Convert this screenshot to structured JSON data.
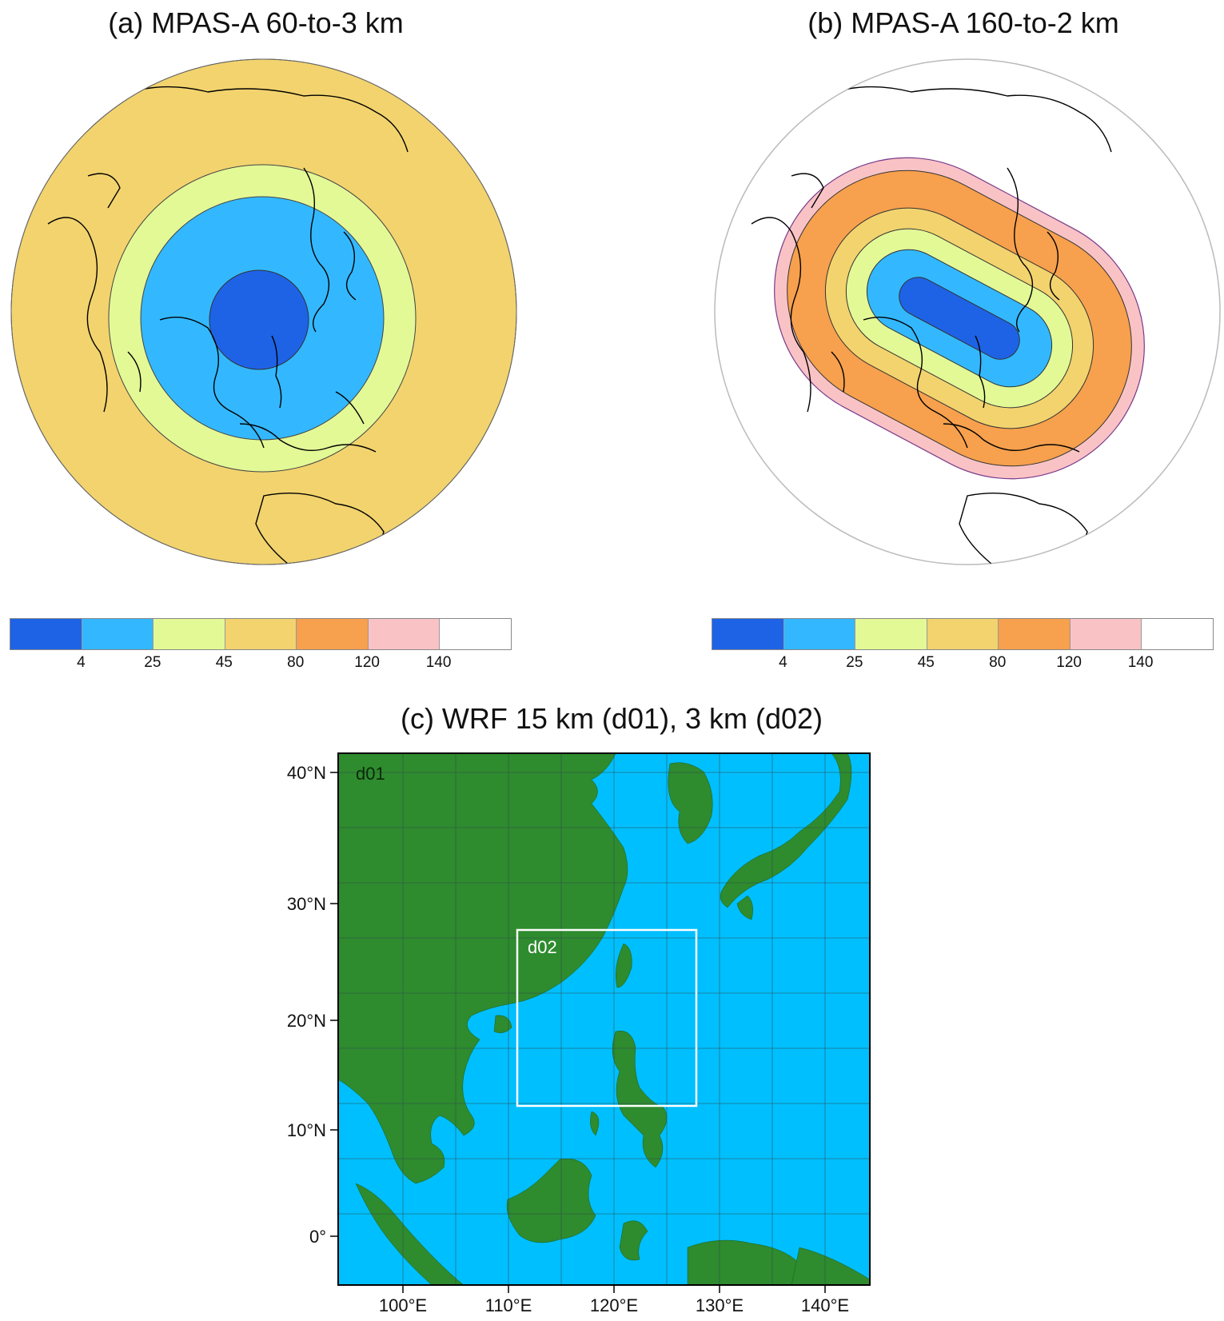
{
  "panels": {
    "a": {
      "title": "(a) MPAS-A 60-to-3 km"
    },
    "b": {
      "title": "(b) MPAS-A 160-to-2 km"
    },
    "c": {
      "title": "(c) WRF 15 km (d01), 3 km (d02)",
      "domain_outer_label": "d01",
      "domain_inner_label": "d02",
      "lat_labels": [
        "40°N",
        "30°N",
        "20°N",
        "10°N",
        "0°"
      ],
      "lon_labels": [
        "100°E",
        "110°E",
        "120°E",
        "130°E",
        "140°E"
      ]
    }
  },
  "colorbar": {
    "ticks": [
      "4",
      "25",
      "45",
      "80",
      "120",
      "140"
    ],
    "colors": [
      "#1e63e6",
      "#33b8ff",
      "#e3f996",
      "#f2d36e",
      "#f7a04d",
      "#f9c3c6",
      "#ffffff"
    ]
  },
  "colors": {
    "land": "#2e8b2e",
    "ocean": "#00bfff",
    "d02_box": "#ffffff",
    "a_outer": "#f2d36e"
  }
}
